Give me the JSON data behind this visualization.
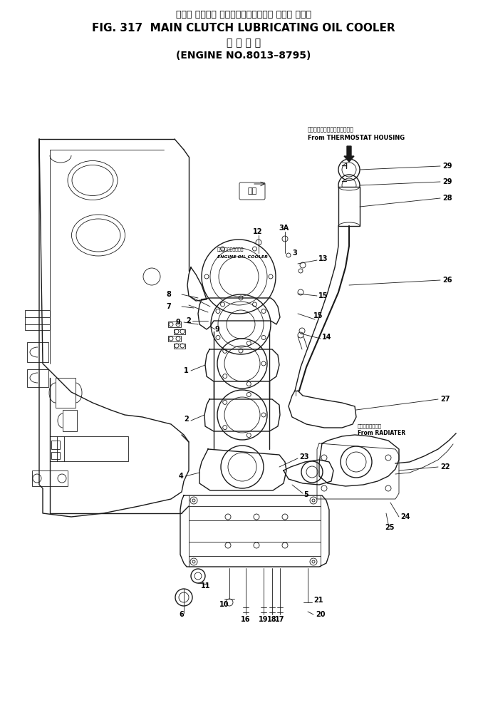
{
  "title_japanese": "メイン クラッチ ルーブリケーティング オイル クーラ",
  "title_main": "FIG. 317  MAIN CLUTCH LUBRICATING OIL COOLER",
  "title_sub_japanese": "適 用 号 機",
  "title_sub_english": "(ENGINE NO.8013–8795)",
  "bg_color": "#ffffff",
  "line_color": "#1a1a1a",
  "fig_width": 6.85,
  "fig_height": 10.1,
  "thermostat_label_jp": "サーモスタットハウジングより",
  "thermostat_label_en": "From THERMOSTAT HOUSING",
  "radiator_label_jp": "ラジエーターより",
  "radiator_label_en": "From RADIATER",
  "engine_oil_cooler_label_jp": "エンジンオイルクーラ",
  "engine_oil_cooler_label_en": "ENGINE OIL COOLER",
  "forward_label": "前方"
}
